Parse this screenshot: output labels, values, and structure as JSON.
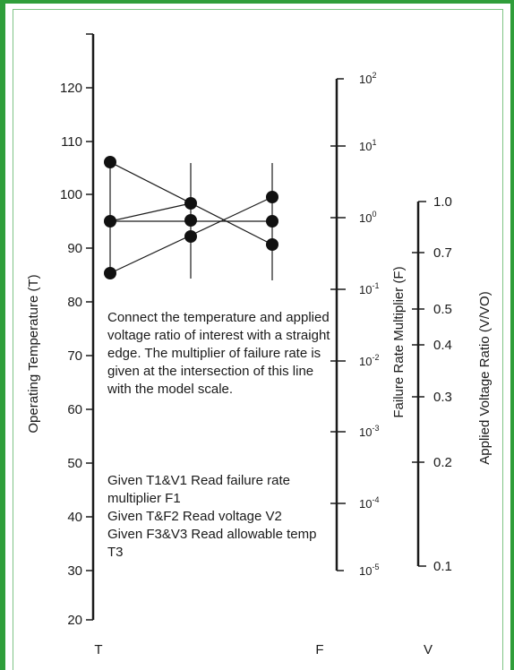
{
  "axes": {
    "t": {
      "label": "Operating Temperature (T)",
      "bottom_label": "T",
      "ticks": [
        "120",
        "110",
        "100",
        "90",
        "80",
        "70",
        "60",
        "50",
        "40",
        "30",
        "20"
      ]
    },
    "f": {
      "label": "Failure Rate Multiplier (F)",
      "bottom_label": "F",
      "ticks": [
        {
          "base": "10",
          "exp": "2"
        },
        {
          "base": "10",
          "exp": "1"
        },
        {
          "base": "10",
          "exp": "0"
        },
        {
          "base": "10",
          "exp": "-1"
        },
        {
          "base": "10",
          "exp": "-2"
        },
        {
          "base": "10",
          "exp": "-3"
        },
        {
          "base": "10",
          "exp": "-4"
        },
        {
          "base": "10",
          "exp": "-5"
        }
      ]
    },
    "v": {
      "label": "Applied Voltage Ratio (V/VO)",
      "bottom_label": "V",
      "ticks": [
        "1.0",
        "0.7",
        "0.5",
        "0.4",
        "0.3",
        "0.2",
        "0.1"
      ]
    }
  },
  "instructions": {
    "main": "Connect the temperature and applied voltage ratio of interest with a straight edge. The multiplier of failure rate is given at the intersection of this line with the model scale.",
    "steps": [
      "Given T1&V1 Read failure rate multiplier F1",
      "Given T&F2 Read voltage V2",
      "Given F3&V3 Read allowable temp T3"
    ]
  },
  "colors": {
    "accent_green": "#2f9e3a",
    "border_green": "#7fc485",
    "ink": "#1a1a1a"
  }
}
